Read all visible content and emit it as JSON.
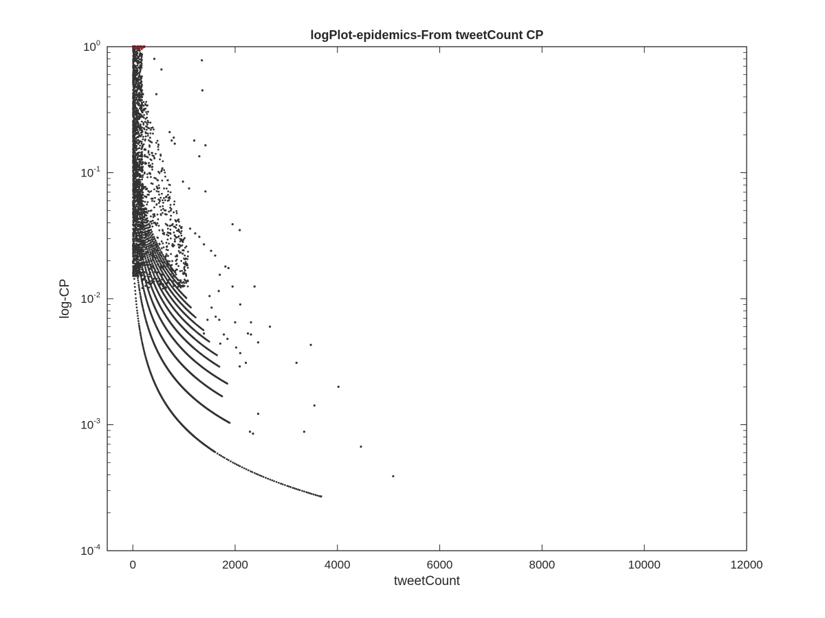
{
  "chart_data": {
    "type": "scatter",
    "title": "logPlot-epidemics-From tweetCount CP",
    "xlabel": "tweetCount",
    "ylabel": "log-CP",
    "xlim": [
      -500,
      12000
    ],
    "ylim": [
      0.0001,
      1
    ],
    "yscale": "log",
    "grid": false,
    "legend": "none",
    "x_ticks": [
      0,
      2000,
      4000,
      6000,
      8000,
      10000,
      12000
    ],
    "x_tick_labels": [
      "0",
      "2000",
      "4000",
      "6000",
      "8000",
      "10000",
      "12000"
    ],
    "y_ticks": [
      0.0001,
      0.001,
      0.01,
      0.1,
      1
    ],
    "y_tick_labels": [
      {
        "base": "10",
        "exp": "-4"
      },
      {
        "base": "10",
        "exp": "-3"
      },
      {
        "base": "10",
        "exp": "-2"
      },
      {
        "base": "10",
        "exp": "-1"
      },
      {
        "base": "10",
        "exp": "0"
      }
    ],
    "colors": {
      "points": "#333333",
      "highlight": "#e01010",
      "axes": "#262626"
    },
    "series": [
      {
        "points": [
          [
            1350,
            0.78
          ],
          [
            1360,
            0.45
          ],
          [
            420,
            0.8
          ],
          [
            560,
            0.66
          ],
          [
            460,
            0.42
          ],
          [
            720,
            0.21
          ],
          [
            760,
            0.18
          ],
          [
            800,
            0.19
          ],
          [
            820,
            0.17
          ],
          [
            1200,
            0.18
          ],
          [
            1420,
            0.165
          ],
          [
            1300,
            0.135
          ],
          [
            980,
            0.085
          ],
          [
            1100,
            0.075
          ],
          [
            1420,
            0.071
          ],
          [
            1120,
            0.036
          ],
          [
            1220,
            0.033
          ],
          [
            1300,
            0.031
          ],
          [
            1390,
            0.027
          ],
          [
            1950,
            0.039
          ],
          [
            2090,
            0.035
          ],
          [
            1810,
            0.018
          ],
          [
            1870,
            0.0175
          ],
          [
            1950,
            0.0125
          ],
          [
            2380,
            0.0125
          ],
          [
            2100,
            0.009
          ],
          [
            2310,
            0.0065
          ],
          [
            2680,
            0.006
          ],
          [
            2250,
            0.0053
          ],
          [
            2310,
            0.0052
          ],
          [
            2450,
            0.0045
          ],
          [
            3480,
            0.0043
          ],
          [
            3200,
            0.0031
          ],
          [
            4020,
            0.002
          ],
          [
            3550,
            0.00142
          ],
          [
            2450,
            0.00122
          ],
          [
            3350,
            0.00088
          ],
          [
            4460,
            0.00067
          ],
          [
            5090,
            0.00039
          ],
          [
            3680,
            0.00027
          ],
          [
            2290,
            0.00088
          ],
          [
            2350,
            0.00085
          ],
          [
            1530,
            0.024
          ],
          [
            1610,
            0.022
          ],
          [
            1700,
            0.0155
          ],
          [
            1680,
            0.0115
          ],
          [
            1500,
            0.0105
          ],
          [
            1540,
            0.0085
          ],
          [
            1690,
            0.0068
          ],
          [
            2000,
            0.0065
          ],
          [
            1620,
            0.0072
          ],
          [
            1780,
            0.0052
          ],
          [
            1850,
            0.0048
          ],
          [
            2020,
            0.0041
          ],
          [
            2100,
            0.0037
          ],
          [
            2210,
            0.0031
          ],
          [
            2090,
            0.0029
          ],
          [
            1710,
            0.0044
          ],
          [
            1390,
            0.0053
          ],
          [
            1460,
            0.0068
          ]
        ]
      },
      {
        "name": "",
        "highlight": true,
        "points": [
          [
            10,
            1.0
          ],
          [
            40,
            1.0
          ],
          [
            70,
            0.99
          ],
          [
            100,
            1.0
          ],
          [
            130,
            0.995
          ],
          [
            160,
            1.0
          ],
          [
            190,
            0.99
          ],
          [
            220,
            1.0
          ]
        ]
      }
    ]
  }
}
